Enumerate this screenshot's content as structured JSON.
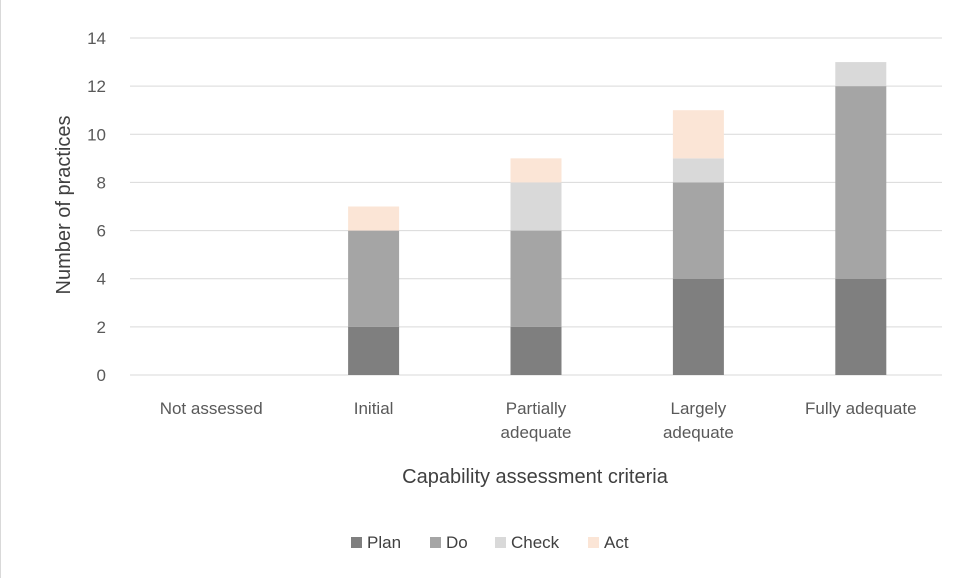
{
  "chart_data": {
    "type": "bar",
    "stacked": true,
    "title": "",
    "xlabel": "Capability assessment criteria",
    "ylabel": "Number of practices",
    "ylim": [
      0,
      14
    ],
    "yticks": [
      0,
      2,
      4,
      6,
      8,
      10,
      12,
      14
    ],
    "grid": true,
    "legend_position": "bottom",
    "categories": [
      [
        "Not assessed"
      ],
      [
        "Initial"
      ],
      [
        "Partially",
        "adequate"
      ],
      [
        "Largely",
        "adequate"
      ],
      [
        "Fully adequate"
      ]
    ],
    "series": [
      {
        "name": "Plan",
        "color": "#7f7f7f",
        "values": [
          0,
          2,
          2,
          4,
          4
        ]
      },
      {
        "name": "Do",
        "color": "#a5a5a5",
        "values": [
          0,
          4,
          4,
          4,
          8
        ]
      },
      {
        "name": "Check",
        "color": "#d9d9d9",
        "values": [
          0,
          0,
          2,
          1,
          1
        ]
      },
      {
        "name": "Act",
        "color": "#fbe5d6",
        "values": [
          0,
          1,
          1,
          2,
          0
        ]
      }
    ]
  }
}
